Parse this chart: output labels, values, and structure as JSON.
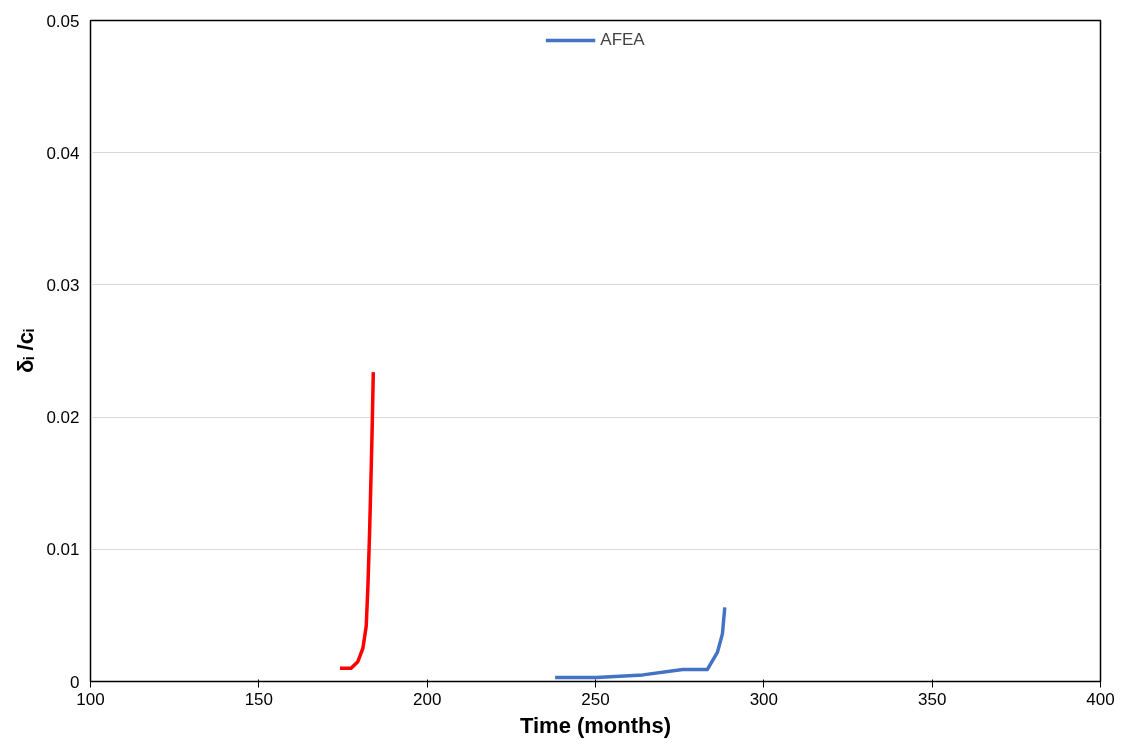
{
  "chart_data": {
    "type": "line",
    "xlabel": "Time (months)",
    "ylabel": "δᵢ /cᵢ",
    "xlim": [
      100,
      400
    ],
    "xticks": [
      100,
      150,
      200,
      250,
      300,
      350,
      400
    ],
    "ylim": [
      0,
      0.05
    ],
    "yticks": [
      0,
      0.01,
      0.02,
      0.03,
      0.04,
      0.05
    ],
    "grid": "y",
    "legend": "top",
    "marker": "none",
    "line_style": "solid",
    "series": [
      {
        "color": "#ff0000",
        "x": [
          174.1,
          177.4,
          179.4,
          180.9,
          181.9,
          182.4,
          182.9,
          183.4,
          183.7,
          184.0
        ],
        "values": [
          0.001,
          0.001,
          0.0015,
          0.0025,
          0.0042,
          0.0072,
          0.0113,
          0.0163,
          0.0196,
          0.0234
        ]
      },
      {
        "name": "AFEA",
        "color": "#4472c4",
        "x": [
          238.0,
          250.3,
          264.1,
          275.9,
          283.2,
          286.2,
          287.7,
          288.4
        ],
        "values": [
          0.0003,
          0.0003,
          0.0005,
          0.0009,
          0.0009,
          0.0022,
          0.0036,
          0.0056
        ]
      }
    ]
  }
}
